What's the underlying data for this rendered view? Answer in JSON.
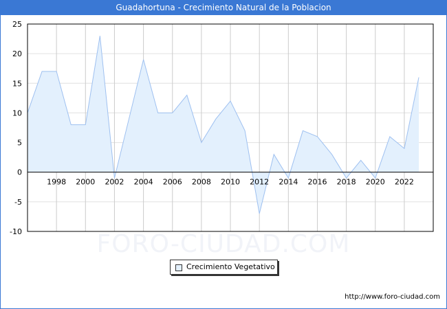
{
  "chart_data": {
    "type": "area",
    "title": "Guadahortuna - Crecimiento Natural de la Poblacion",
    "xlabel": "",
    "ylabel": "",
    "x": [
      1996,
      1997,
      1998,
      1999,
      2000,
      2001,
      2002,
      2003,
      2004,
      2005,
      2006,
      2007,
      2008,
      2009,
      2010,
      2011,
      2012,
      2013,
      2014,
      2015,
      2016,
      2017,
      2018,
      2019,
      2020,
      2021,
      2022,
      2023
    ],
    "series": [
      {
        "name": "Crecimiento Vegetativo",
        "values": [
          10,
          17,
          17,
          8,
          8,
          23,
          -1,
          9,
          19,
          10,
          10,
          13,
          5,
          9,
          12,
          7,
          -7,
          3,
          -1,
          7,
          6,
          3,
          -1,
          2,
          -1,
          6,
          4,
          16
        ]
      }
    ],
    "ylim": [
      -10,
      25
    ],
    "yticks": [
      -10,
      -5,
      0,
      5,
      10,
      15,
      20,
      25
    ],
    "xticks": [
      1998,
      2000,
      2002,
      2004,
      2006,
      2008,
      2010,
      2012,
      2014,
      2016,
      2018,
      2020,
      2022
    ],
    "legend": "bottom-center",
    "grid": true,
    "colors": {
      "line": "#9ec0f0",
      "fill": "#e3f0fd",
      "header": "#3a78d4"
    }
  },
  "watermark": "FORO-CIUDAD.COM",
  "source": "http://www.foro-ciudad.com"
}
